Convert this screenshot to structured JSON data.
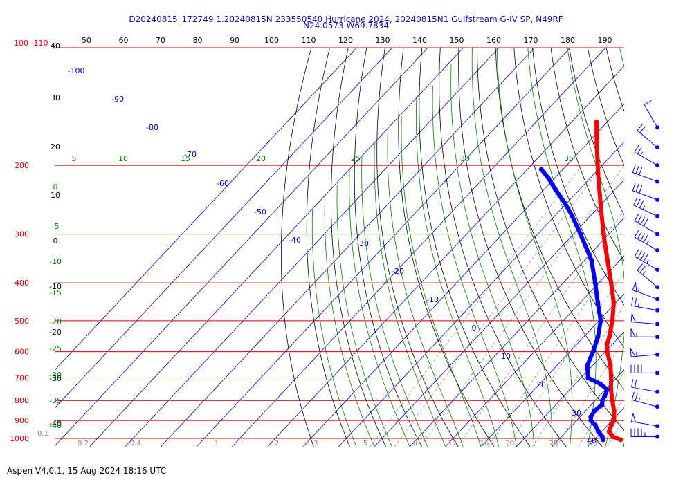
{
  "header": {
    "line1": "D20240815_172749.1.20240815N 233550540 Hurricane 2024, 20240815N1 Gulfstream G-IV SP, N49RF",
    "line2": "N24.0573 W69.7834"
  },
  "footer": {
    "text": "Aspen V4.0.1, 15 Aug 2024  18:16 UTC"
  },
  "colors": {
    "temperature": "#ff0000",
    "dewpoint": "#0000ff",
    "isobar": "#cc0000",
    "isotherm": "#0000c8",
    "mixing_ratio": "#808080",
    "dry_adiabat": "#000000",
    "moist_adiabat": "#008000"
  },
  "chart_data": {
    "type": "skew-t",
    "top_axis_labels": [
      "50",
      "60",
      "70",
      "80",
      "90",
      "100",
      "110",
      "120",
      "130",
      "140",
      "150",
      "160",
      "170",
      "180",
      "190"
    ],
    "left_temp_labels": [
      "40",
      "30",
      "20",
      "10",
      "0",
      "-10",
      "-20",
      "-30",
      "-40"
    ],
    "pressure_levels": [
      100,
      200,
      300,
      400,
      500,
      600,
      700,
      800,
      900,
      1000
    ],
    "pressure_labels": [
      "100",
      "200",
      "300",
      "400",
      "500",
      "600",
      "700",
      "800",
      "900",
      "1000"
    ],
    "top_left_pressure_label": "100 -110",
    "isotherm_labels": [
      "-100",
      "-90",
      "-80",
      "-70",
      "-60",
      "-50",
      "-40",
      "-30",
      "-20",
      "-10",
      "0",
      "10",
      "20",
      "30",
      "40"
    ],
    "moist_labels_top": [
      "5",
      "10",
      "15",
      "20",
      "25",
      "30",
      "35"
    ],
    "moist_labels_left": [
      "0",
      "-5",
      "-10",
      "-15",
      "-20",
      "-25",
      "-30",
      "-35",
      "-40"
    ],
    "mixing_ratio_labels": [
      "0.1",
      "0.2",
      "0.4",
      "1",
      "2",
      "3",
      "5",
      "8",
      "12",
      "16",
      "20",
      "28",
      "40"
    ],
    "temperature_profile": [
      {
        "p": 1008,
        "t": 27.5
      },
      {
        "p": 990,
        "t": 24.5
      },
      {
        "p": 960,
        "t": 22.0
      },
      {
        "p": 925,
        "t": 21.0
      },
      {
        "p": 900,
        "t": 20.5
      },
      {
        "p": 850,
        "t": 18.0
      },
      {
        "p": 800,
        "t": 14.8
      },
      {
        "p": 750,
        "t": 11.5
      },
      {
        "p": 700,
        "t": 8.5
      },
      {
        "p": 650,
        "t": 5.0
      },
      {
        "p": 600,
        "t": 0.5
      },
      {
        "p": 575,
        "t": -1.5
      },
      {
        "p": 550,
        "t": -2.8
      },
      {
        "p": 500,
        "t": -6.2
      },
      {
        "p": 450,
        "t": -10.5
      },
      {
        "p": 400,
        "t": -16.5
      },
      {
        "p": 350,
        "t": -23.5
      },
      {
        "p": 300,
        "t": -31.5
      },
      {
        "p": 250,
        "t": -40.5
      },
      {
        "p": 210,
        "t": -49.0
      },
      {
        "p": 175,
        "t": -57.5
      },
      {
        "p": 155,
        "t": -63.0
      }
    ],
    "dewpoint_profile": [
      {
        "p": 1008,
        "t": 22.5
      },
      {
        "p": 990,
        "t": 21.5
      },
      {
        "p": 960,
        "t": 19.0
      },
      {
        "p": 925,
        "t": 16.5
      },
      {
        "p": 900,
        "t": 14.0
      },
      {
        "p": 880,
        "t": 13.0
      },
      {
        "p": 850,
        "t": 12.5
      },
      {
        "p": 820,
        "t": 13.0
      },
      {
        "p": 800,
        "t": 12.0
      },
      {
        "p": 780,
        "t": 11.5
      },
      {
        "p": 750,
        "t": 10.5
      },
      {
        "p": 725,
        "t": 7.0
      },
      {
        "p": 700,
        "t": 2.0
      },
      {
        "p": 650,
        "t": -1.5
      },
      {
        "p": 600,
        "t": -3.5
      },
      {
        "p": 550,
        "t": -6.0
      },
      {
        "p": 500,
        "t": -9.5
      },
      {
        "p": 450,
        "t": -15.0
      },
      {
        "p": 400,
        "t": -21.0
      },
      {
        "p": 350,
        "t": -28.0
      },
      {
        "p": 300,
        "t": -38.0
      },
      {
        "p": 270,
        "t": -45.0
      },
      {
        "p": 250,
        "t": -50.5
      },
      {
        "p": 230,
        "t": -57.0
      },
      {
        "p": 215,
        "t": -62.0
      },
      {
        "p": 205,
        "t": -66.0
      }
    ],
    "wind_barbs": [
      {
        "p": 160,
        "dir": 330,
        "kt": 10
      },
      {
        "p": 180,
        "dir": 310,
        "kt": 20
      },
      {
        "p": 200,
        "dir": 300,
        "kt": 25
      },
      {
        "p": 220,
        "dir": 290,
        "kt": 30
      },
      {
        "p": 245,
        "dir": 290,
        "kt": 30
      },
      {
        "p": 270,
        "dir": 295,
        "kt": 35
      },
      {
        "p": 300,
        "dir": 300,
        "kt": 40
      },
      {
        "p": 330,
        "dir": 300,
        "kt": 45
      },
      {
        "p": 370,
        "dir": 300,
        "kt": 45
      },
      {
        "p": 410,
        "dir": 310,
        "kt": 25
      },
      {
        "p": 440,
        "dir": 290,
        "kt": 55
      },
      {
        "p": 470,
        "dir": 280,
        "kt": 25
      },
      {
        "p": 510,
        "dir": 275,
        "kt": 55
      },
      {
        "p": 550,
        "dir": 270,
        "kt": 55
      },
      {
        "p": 610,
        "dir": 265,
        "kt": 55
      },
      {
        "p": 680,
        "dir": 270,
        "kt": 40
      },
      {
        "p": 760,
        "dir": 280,
        "kt": 20
      },
      {
        "p": 830,
        "dir": 285,
        "kt": 25
      },
      {
        "p": 930,
        "dir": 280,
        "kt": 50
      },
      {
        "p": 990,
        "dir": 270,
        "kt": 45
      }
    ]
  }
}
